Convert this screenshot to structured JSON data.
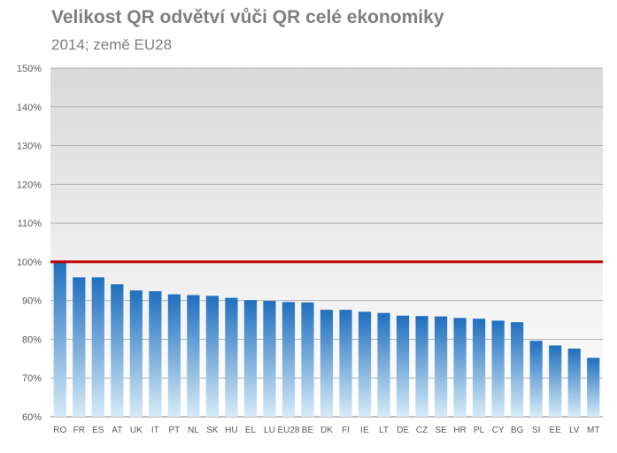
{
  "chart_data": {
    "type": "bar",
    "title": "Velikost QR odvětví vůči QR celé ekonomiky",
    "subtitle": "2014; země EU28",
    "xlabel": "",
    "ylabel": "",
    "ylim": [
      60,
      150
    ],
    "ytick_step": 10,
    "ytick_suffix": "%",
    "grid": true,
    "reference_line": {
      "value": 100,
      "color": "#c00000"
    },
    "bar_color_top": "#1f6fbf",
    "bar_color_bottom": "#d6ebf7",
    "categories": [
      "RO",
      "FR",
      "ES",
      "AT",
      "UK",
      "IT",
      "PT",
      "NL",
      "SK",
      "HU",
      "EL",
      "LU",
      "EU28",
      "BE",
      "DK",
      "FI",
      "IE",
      "LT",
      "DE",
      "CZ",
      "SE",
      "HR",
      "PL",
      "CY",
      "BG",
      "SI",
      "EE",
      "LV",
      "MT"
    ],
    "values": [
      100.0,
      96.0,
      96.0,
      94.2,
      92.6,
      92.4,
      91.6,
      91.4,
      91.2,
      90.7,
      90.1,
      89.9,
      89.6,
      89.5,
      87.6,
      87.6,
      87.1,
      86.8,
      86.1,
      86.0,
      85.9,
      85.5,
      85.3,
      84.8,
      84.4,
      79.6,
      78.4,
      77.6,
      75.2
    ]
  }
}
